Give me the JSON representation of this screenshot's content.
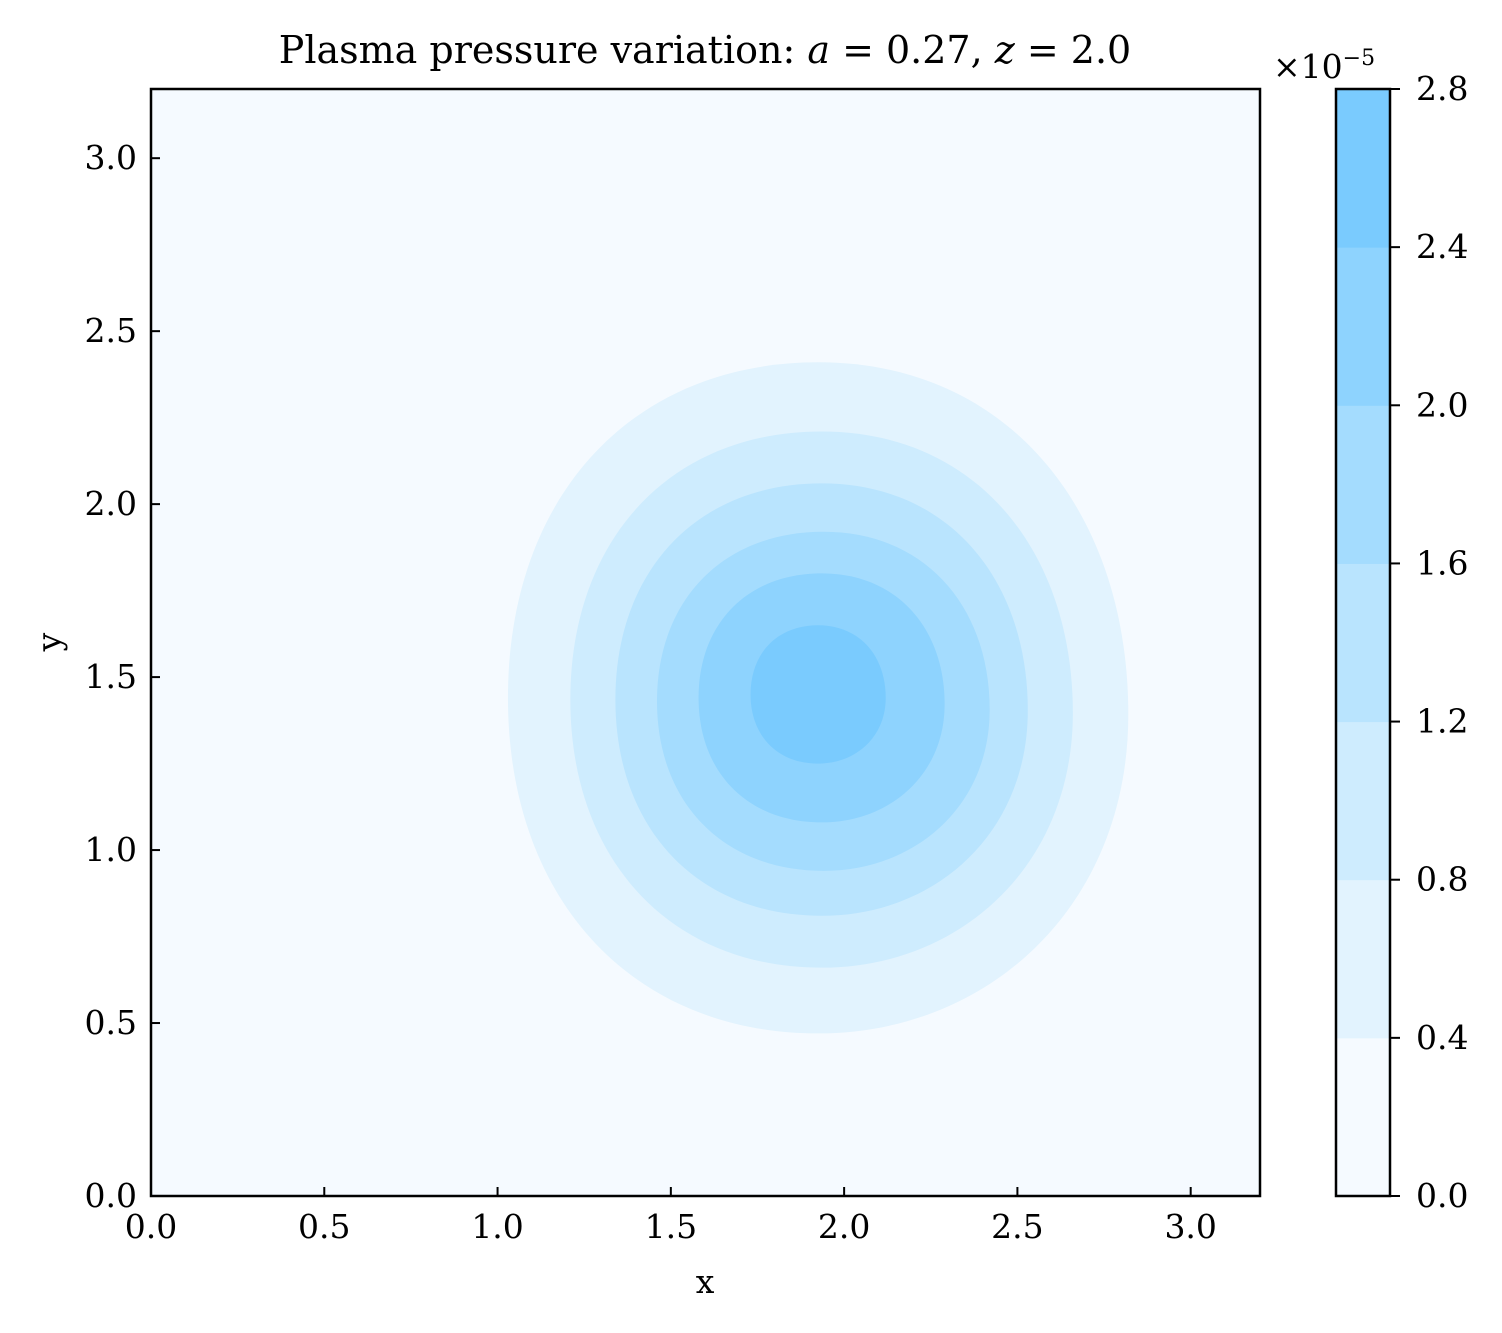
{
  "chart_data": {
    "type": "heatmap",
    "title": "Plasma pressure variation: a = 0.27, z = 2.0",
    "title_parts": {
      "prefix": "Plasma pressure variation: ",
      "a_symbol": "a",
      "a_value": " = 0.27, ",
      "z_symbol": "z",
      "z_value": " = 2.0"
    },
    "xlabel": "x",
    "ylabel": "y",
    "xlim": [
      0.0,
      3.2
    ],
    "ylim": [
      0.0,
      3.2
    ],
    "xticks": [
      0.0,
      0.5,
      1.0,
      1.5,
      2.0,
      2.5,
      3.0
    ],
    "xtick_labels": [
      "0.0",
      "0.5",
      "1.0",
      "1.5",
      "2.0",
      "2.5",
      "3.0"
    ],
    "yticks": [
      0.0,
      0.5,
      1.0,
      1.5,
      2.0,
      2.5,
      3.0
    ],
    "ytick_labels": [
      "0.0",
      "0.5",
      "1.0",
      "1.5",
      "2.0",
      "2.5",
      "3.0"
    ],
    "grid": false,
    "colorbar": {
      "multiplier_base": "×10",
      "multiplier_exp": "−5",
      "levels": [
        0.0,
        0.4,
        0.8,
        1.2,
        1.6,
        2.0,
        2.4,
        2.8
      ],
      "tick_labels": [
        "0.0",
        "0.4",
        "0.8",
        "1.2",
        "1.6",
        "2.0",
        "2.4",
        "2.8"
      ],
      "colors": [
        "#f5faff",
        "#e2f3fe",
        "#ceecfe",
        "#b9e4fe",
        "#a4dcfe",
        "#8ed3fe",
        "#7acbfe"
      ]
    },
    "contour_levels": [
      {
        "level": 0.4,
        "x_range": [
          1.03,
          2.82
        ],
        "y_range": [
          0.47,
          2.41
        ]
      },
      {
        "level": 0.8,
        "x_range": [
          1.21,
          2.66
        ],
        "y_range": [
          0.66,
          2.21
        ]
      },
      {
        "level": 1.2,
        "x_range": [
          1.34,
          2.53
        ],
        "y_range": [
          0.81,
          2.06
        ]
      },
      {
        "level": 1.6,
        "x_range": [
          1.46,
          2.42
        ],
        "y_range": [
          0.94,
          1.92
        ]
      },
      {
        "level": 2.0,
        "x_range": [
          1.58,
          2.29
        ],
        "y_range": [
          1.08,
          1.8
        ]
      },
      {
        "level": 2.4,
        "x_range": [
          1.73,
          2.12
        ],
        "y_range": [
          1.25,
          1.65
        ]
      }
    ],
    "peak": {
      "x": 1.93,
      "y": 1.45,
      "value": 2.6
    }
  }
}
